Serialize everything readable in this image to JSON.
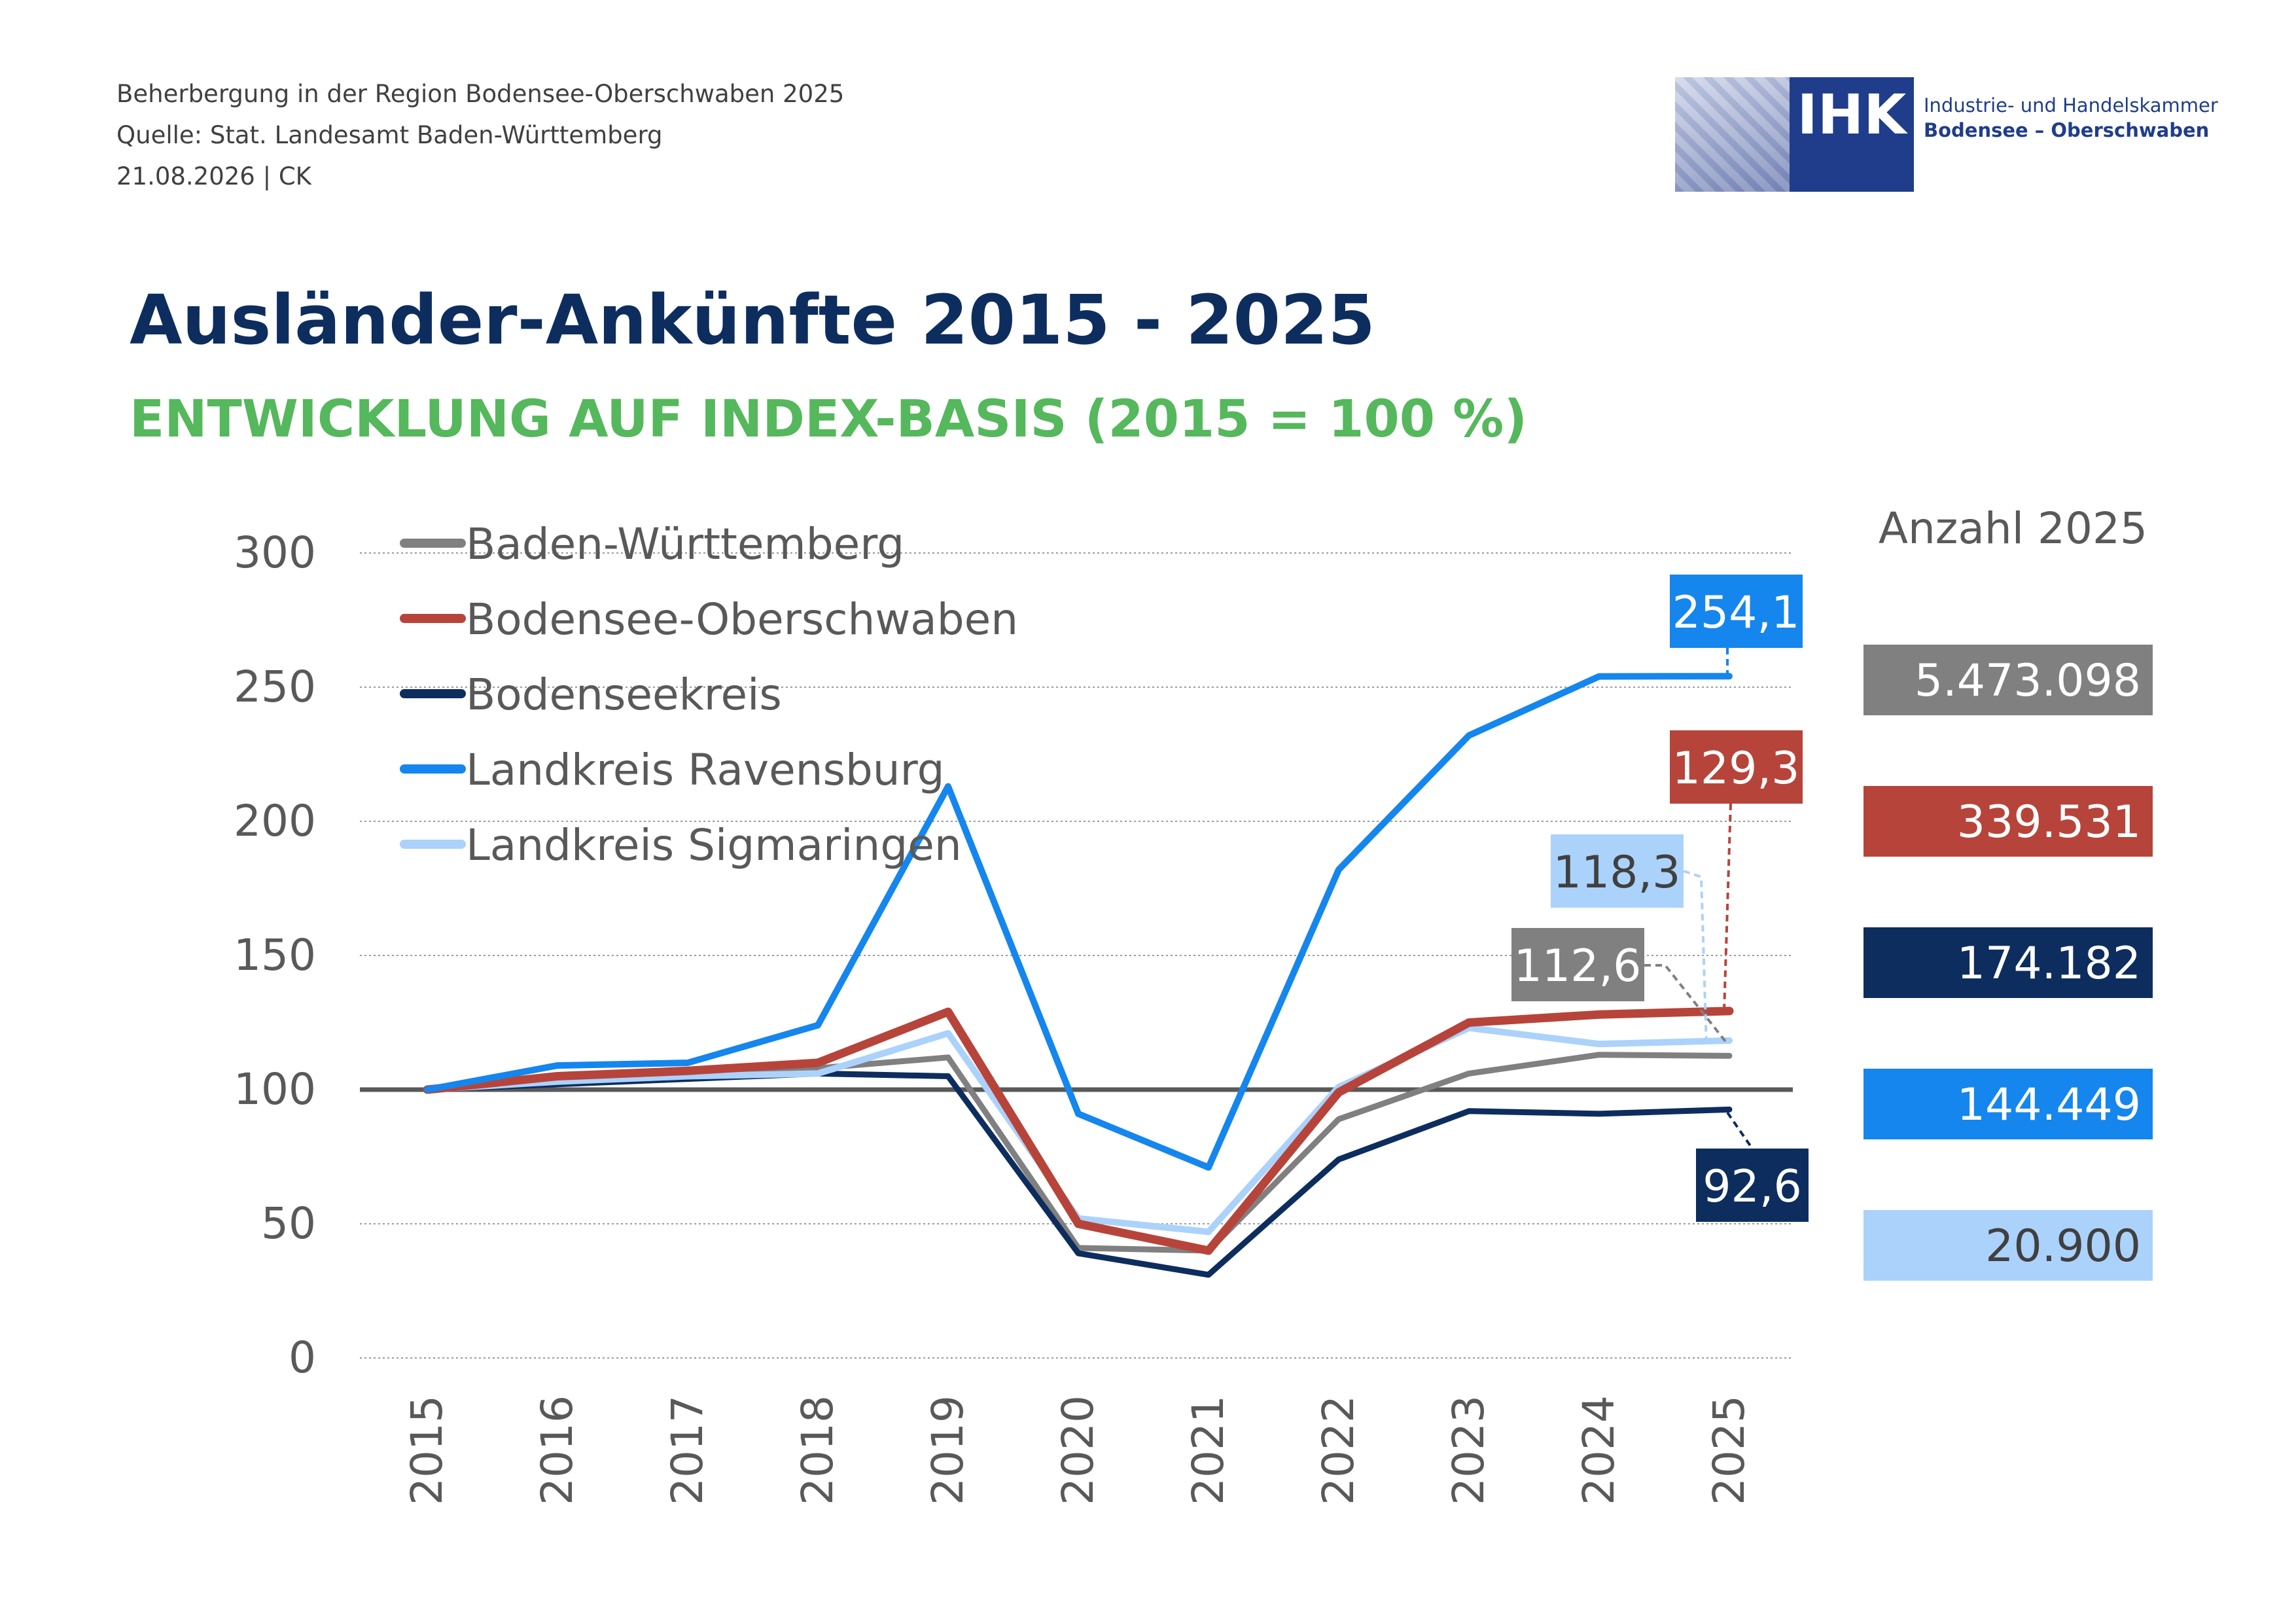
{
  "header": {
    "line1": "Beherbergung in der Region Bodensee-Oberschwaben 2025",
    "line2": "Quelle: Stat. Landesamt Baden-Württemberg",
    "line3": "21.08.2026 | CK"
  },
  "logo": {
    "abbr": "IHK",
    "name_line1": "Industrie- und Handelskammer",
    "name_line2": "Bodensee – Oberschwaben",
    "brand_color": "#1f3d8a"
  },
  "title": "Ausländer-Ankünfte 2015 - 2025",
  "subtitle": "ENTWICKLUNG AUF INDEX-BASIS (2015 = 100 %)",
  "chart_data": {
    "type": "line",
    "x": [
      "2015",
      "2016",
      "2017",
      "2018",
      "2019",
      "2020",
      "2021",
      "2022",
      "2023",
      "2024",
      "2025"
    ],
    "ylim": [
      0,
      300
    ],
    "yticks": [
      "0",
      "50",
      "100",
      "150",
      "200",
      "250",
      "300"
    ],
    "reference_line": 100,
    "grid": true,
    "legend_position": "top-left",
    "series": [
      {
        "name": "Baden-Württemberg",
        "color": "#808080",
        "values": [
          100,
          103,
          105,
          108,
          112,
          41,
          40,
          89,
          106,
          113,
          112.6
        ],
        "end_label": "112,6",
        "count_2025": "5.473.098"
      },
      {
        "name": "Bodensee-Oberschwaben",
        "color": "#b7443a",
        "values": [
          100,
          105,
          107,
          110,
          129,
          50,
          40,
          99,
          125,
          128,
          129.3
        ],
        "end_label": "129,3",
        "count_2025": "339.531"
      },
      {
        "name": "Bodenseekreis",
        "color": "#0d2d5e",
        "values": [
          100,
          102,
          104,
          106,
          105,
          39,
          31,
          74,
          92,
          91,
          92.6
        ],
        "end_label": "92,6",
        "count_2025": "174.182"
      },
      {
        "name": "Landkreis Ravensburg",
        "color": "#1486ee",
        "values": [
          100,
          109,
          110,
          124,
          213,
          91,
          71,
          182,
          232,
          254,
          254.1
        ],
        "end_label": "254,1",
        "count_2025": "144.449"
      },
      {
        "name": "Landkreis Sigmaringen",
        "color": "#abd2fb",
        "values": [
          100,
          103,
          105,
          106,
          121,
          52,
          47,
          101,
          123,
          117,
          118.3
        ],
        "end_label": "118,3",
        "count_2025": "20.900"
      }
    ],
    "count_title": "Anzahl 2025"
  }
}
